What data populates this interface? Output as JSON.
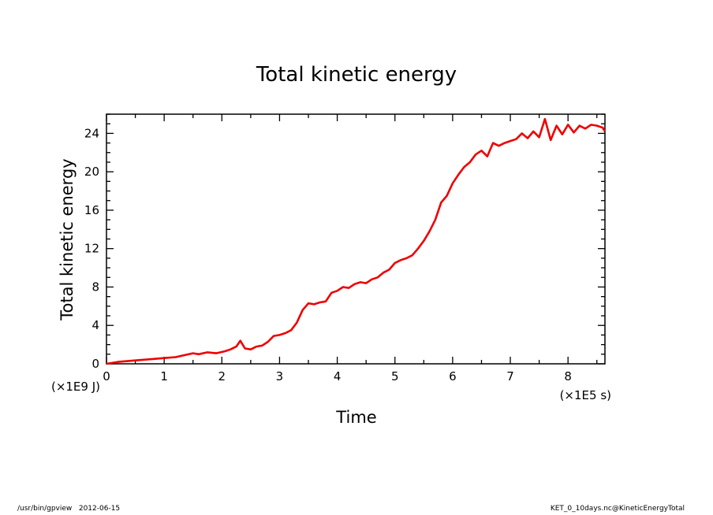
{
  "chart_data": {
    "type": "line",
    "title": "Total kinetic energy",
    "xlabel": "Time",
    "ylabel": "Total kinetic energy",
    "x_unit": "(×1E5 s)",
    "y_unit": "(×1E9 J)",
    "xlim": [
      0,
      8.64
    ],
    "ylim": [
      0,
      26
    ],
    "x_ticks": [
      0,
      1,
      2,
      3,
      4,
      5,
      6,
      7,
      8
    ],
    "y_ticks": [
      0,
      4,
      8,
      12,
      16,
      20,
      24
    ],
    "x_tick_labels": [
      "0",
      "1",
      "2",
      "3",
      "4",
      "5",
      "6",
      "7",
      "8"
    ],
    "y_tick_labels": [
      "0",
      "4",
      "8",
      "12",
      "16",
      "20",
      "24"
    ],
    "grid": false,
    "series": [
      {
        "color": "#ee0000",
        "x": [
          0,
          0.2,
          0.5,
          0.8,
          1.0,
          1.2,
          1.35,
          1.5,
          1.6,
          1.75,
          1.9,
          2.05,
          2.15,
          2.25,
          2.32,
          2.4,
          2.5,
          2.6,
          2.7,
          2.8,
          2.9,
          3.0,
          3.1,
          3.2,
          3.3,
          3.4,
          3.5,
          3.6,
          3.7,
          3.8,
          3.9,
          4.0,
          4.1,
          4.2,
          4.3,
          4.4,
          4.5,
          4.6,
          4.7,
          4.8,
          4.9,
          5.0,
          5.1,
          5.2,
          5.3,
          5.4,
          5.5,
          5.6,
          5.7,
          5.8,
          5.9,
          6.0,
          6.1,
          6.2,
          6.3,
          6.4,
          6.5,
          6.6,
          6.7,
          6.8,
          6.9,
          7.0,
          7.1,
          7.2,
          7.3,
          7.4,
          7.5,
          7.6,
          7.7,
          7.8,
          7.9,
          8.0,
          8.1,
          8.2,
          8.3,
          8.4,
          8.5,
          8.6,
          8.64
        ],
        "y": [
          0,
          0.2,
          0.35,
          0.5,
          0.6,
          0.7,
          0.9,
          1.1,
          1.0,
          1.2,
          1.1,
          1.3,
          1.5,
          1.8,
          2.4,
          1.6,
          1.5,
          1.8,
          1.9,
          2.3,
          2.9,
          3.0,
          3.2,
          3.5,
          4.3,
          5.6,
          6.3,
          6.2,
          6.4,
          6.5,
          7.4,
          7.6,
          8.0,
          7.9,
          8.3,
          8.5,
          8.4,
          8.8,
          9.0,
          9.5,
          9.8,
          10.5,
          10.8,
          11.0,
          11.3,
          12.0,
          12.8,
          13.8,
          15.0,
          16.8,
          17.5,
          18.8,
          19.7,
          20.5,
          21.0,
          21.8,
          22.2,
          21.6,
          23.0,
          22.7,
          23.0,
          23.2,
          23.4,
          24.0,
          23.5,
          24.2,
          23.6,
          25.5,
          23.3,
          24.8,
          23.9,
          24.9,
          24.1,
          24.8,
          24.5,
          24.9,
          24.8,
          24.6,
          24.2
        ]
      }
    ]
  },
  "footer": {
    "left": "/usr/bin/gpview   2012-06-15",
    "right": "KET_0_10days.nc@KineticEnergyTotal"
  }
}
